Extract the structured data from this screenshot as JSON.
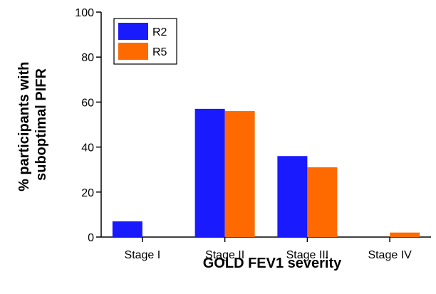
{
  "chart_data": {
    "type": "bar",
    "categories": [
      "Stage I",
      "Stage II",
      "Stage III",
      "Stage IV"
    ],
    "series": [
      {
        "name": "R2",
        "values": [
          7,
          57,
          36,
          0
        ],
        "color": "#1a1aff"
      },
      {
        "name": "R5",
        "values": [
          0,
          56,
          31,
          2
        ],
        "color": "#ff6a00"
      }
    ],
    "xlabel": "GOLD FEV1 severity",
    "ylabel_lines": [
      "% participants with",
      "suboptimal PIFR"
    ],
    "ylim": [
      0,
      100
    ],
    "yticks": [
      0,
      20,
      40,
      60,
      80,
      100
    ],
    "legend": {
      "placement": "top-left"
    },
    "grid": false
  }
}
